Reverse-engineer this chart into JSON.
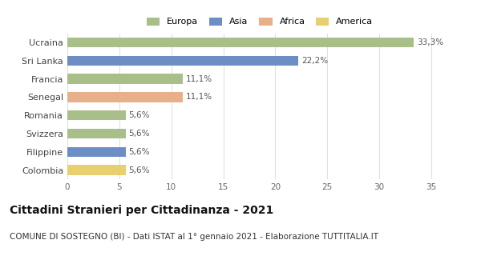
{
  "categories": [
    "Ucraina",
    "Sri Lanka",
    "Francia",
    "Senegal",
    "Romania",
    "Svizzera",
    "Filippine",
    "Colombia"
  ],
  "values": [
    33.3,
    22.2,
    11.1,
    11.1,
    5.6,
    5.6,
    5.6,
    5.6
  ],
  "labels": [
    "33,3%",
    "22,2%",
    "11,1%",
    "11,1%",
    "5,6%",
    "5,6%",
    "5,6%",
    "5,6%"
  ],
  "colors": [
    "#a8bf8a",
    "#6d8ec4",
    "#a8bf8a",
    "#e8b08a",
    "#a8bf8a",
    "#a8bf8a",
    "#6d8ec4",
    "#e8d070"
  ],
  "legend": [
    {
      "label": "Europa",
      "color": "#a8bf8a"
    },
    {
      "label": "Asia",
      "color": "#6d8ec4"
    },
    {
      "label": "Africa",
      "color": "#e8b08a"
    },
    {
      "label": "America",
      "color": "#e8d070"
    }
  ],
  "xlim": [
    0,
    37
  ],
  "xticks": [
    0,
    5,
    10,
    15,
    20,
    25,
    30,
    35
  ],
  "title": "Cittadini Stranieri per Cittadinanza - 2021",
  "subtitle": "COMUNE DI SOSTEGNO (BI) - Dati ISTAT al 1° gennaio 2021 - Elaborazione TUTTITALIA.IT",
  "title_fontsize": 10,
  "subtitle_fontsize": 7.5,
  "background_color": "#ffffff",
  "grid_color": "#e0e0e0",
  "bar_height": 0.55
}
